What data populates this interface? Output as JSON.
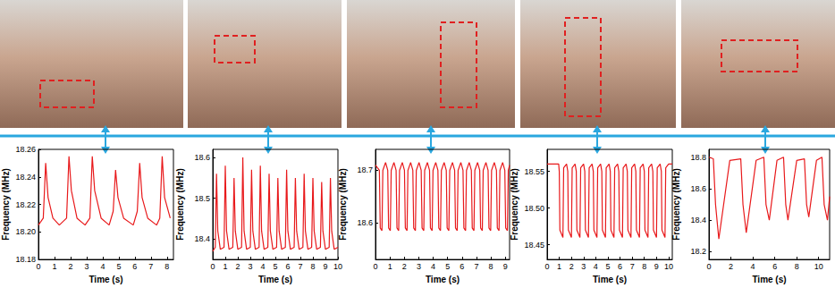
{
  "chart_data": [
    {
      "type": "line",
      "color": "#e8191b",
      "x_label": "Time (s)",
      "y_label": "Frequency (MHz)",
      "grid": false,
      "xlim": [
        0,
        8.4
      ],
      "xticks": [
        0,
        1,
        2,
        3,
        4,
        5,
        6,
        7,
        8
      ],
      "ylim": [
        18.18,
        18.26
      ],
      "yticks": [
        18.18,
        {
          "value": 18.2,
          "label": "18.20"
        },
        18.22,
        18.24,
        18.26
      ],
      "x": [
        0,
        0.3,
        0.45,
        0.6,
        0.9,
        1.3,
        1.75,
        1.9,
        2.05,
        2.4,
        2.9,
        3.2,
        3.35,
        3.5,
        3.9,
        4.4,
        4.65,
        4.8,
        4.95,
        5.3,
        5.9,
        6.15,
        6.3,
        6.45,
        6.8,
        7.35,
        7.55,
        7.7,
        7.85,
        8.2
      ],
      "series": [
        {
          "values": [
            18.205,
            18.21,
            18.25,
            18.225,
            18.21,
            18.205,
            18.21,
            18.255,
            18.23,
            18.21,
            18.205,
            18.21,
            18.255,
            18.23,
            18.21,
            18.205,
            18.215,
            18.245,
            18.225,
            18.21,
            18.205,
            18.215,
            18.25,
            18.225,
            18.21,
            18.205,
            18.21,
            18.255,
            18.225,
            18.21
          ]
        }
      ]
    },
    {
      "type": "line",
      "color": "#e8191b",
      "x_label": "Time (s)",
      "y_label": "Frequency (MHz)",
      "grid": false,
      "xlim": [
        0,
        10
      ],
      "xticks": [
        0,
        1,
        2,
        3,
        4,
        5,
        6,
        7,
        8,
        9,
        10
      ],
      "ylim": [
        18.35,
        18.62
      ],
      "yticks": [
        18.4,
        18.5,
        18.6
      ],
      "x": [
        0,
        0.2,
        0.3,
        0.4,
        0.6,
        0.9,
        1.0,
        1.1,
        1.3,
        1.6,
        1.7,
        1.8,
        2.0,
        2.3,
        2.4,
        2.5,
        2.7,
        3.0,
        3.1,
        3.2,
        3.4,
        3.7,
        3.8,
        3.9,
        4.1,
        4.4,
        4.5,
        4.6,
        4.8,
        5.1,
        5.2,
        5.3,
        5.5,
        5.8,
        5.9,
        6.0,
        6.2,
        6.5,
        6.6,
        6.7,
        6.9,
        7.2,
        7.3,
        7.4,
        7.6,
        7.9,
        8.0,
        8.1,
        8.3,
        8.6,
        8.7,
        8.8,
        9.0,
        9.3,
        9.4,
        9.5,
        9.7,
        10.0
      ],
      "series": [
        {
          "values": [
            18.37,
            18.38,
            18.56,
            18.42,
            18.375,
            18.38,
            18.58,
            18.42,
            18.375,
            18.38,
            18.55,
            18.42,
            18.375,
            18.38,
            18.6,
            18.42,
            18.375,
            18.38,
            18.57,
            18.42,
            18.375,
            18.38,
            18.58,
            18.42,
            18.375,
            18.38,
            18.56,
            18.42,
            18.375,
            18.38,
            18.55,
            18.42,
            18.375,
            18.38,
            18.57,
            18.42,
            18.375,
            18.38,
            18.55,
            18.42,
            18.375,
            18.38,
            18.56,
            18.42,
            18.375,
            18.38,
            18.55,
            18.42,
            18.375,
            18.38,
            18.54,
            18.42,
            18.375,
            18.38,
            18.55,
            18.42,
            18.375,
            18.38
          ]
        }
      ]
    },
    {
      "type": "line",
      "color": "#e8191b",
      "x_label": "Time (s)",
      "y_label": "Frequency (MHz)",
      "grid": false,
      "xlim": [
        0,
        9.3
      ],
      "xticks": [
        0,
        1,
        2,
        3,
        4,
        5,
        6,
        7,
        8,
        9
      ],
      "ylim": [
        18.53,
        18.74
      ],
      "yticks": [
        18.6,
        18.7
      ],
      "x": [
        0,
        0.27,
        0.33,
        0.45,
        0.51,
        0.7,
        0.85,
        0.91,
        1.03,
        1.09,
        1.28,
        1.43,
        1.49,
        1.61,
        1.67,
        1.86,
        2.01,
        2.07,
        2.19,
        2.25,
        2.44,
        2.59,
        2.65,
        2.77,
        2.83,
        3.02,
        3.17,
        3.23,
        3.35,
        3.41,
        3.6,
        3.75,
        3.81,
        3.93,
        3.99,
        4.18,
        4.33,
        4.39,
        4.51,
        4.57,
        4.76,
        4.91,
        4.97,
        5.09,
        5.15,
        5.34,
        5.49,
        5.55,
        5.67,
        5.73,
        5.92,
        6.07,
        6.13,
        6.25,
        6.31,
        6.5,
        6.65,
        6.71,
        6.83,
        6.89,
        7.08,
        7.23,
        7.29,
        7.41,
        7.47,
        7.66,
        7.81,
        7.87,
        7.99,
        8.05,
        8.24,
        8.39,
        8.45,
        8.57,
        8.63,
        8.82,
        8.97,
        9.03,
        9.15,
        9.21,
        9.3
      ],
      "series": [
        {
          "values": [
            18.71,
            18.7,
            18.59,
            18.585,
            18.7,
            18.715,
            18.7,
            18.59,
            18.585,
            18.7,
            18.715,
            18.7,
            18.59,
            18.585,
            18.7,
            18.715,
            18.7,
            18.59,
            18.585,
            18.7,
            18.715,
            18.7,
            18.59,
            18.585,
            18.7,
            18.715,
            18.7,
            18.59,
            18.585,
            18.7,
            18.715,
            18.7,
            18.59,
            18.585,
            18.7,
            18.715,
            18.7,
            18.59,
            18.585,
            18.7,
            18.715,
            18.7,
            18.59,
            18.585,
            18.7,
            18.715,
            18.7,
            18.59,
            18.585,
            18.7,
            18.715,
            18.7,
            18.59,
            18.585,
            18.7,
            18.715,
            18.7,
            18.59,
            18.585,
            18.7,
            18.715,
            18.7,
            18.59,
            18.585,
            18.7,
            18.715,
            18.7,
            18.59,
            18.585,
            18.7,
            18.715,
            18.7,
            18.59,
            18.585,
            18.7,
            18.715,
            18.7,
            18.59,
            18.585,
            18.7,
            18.71
          ]
        }
      ]
    },
    {
      "type": "line",
      "color": "#e8191b",
      "x_label": "Time (s)",
      "y_label": "Frequency (MHz)",
      "grid": false,
      "xlim": [
        0,
        10.3
      ],
      "xticks": [
        0,
        1,
        2,
        3,
        4,
        5,
        6,
        7,
        8,
        9,
        10
      ],
      "ylim": [
        18.43,
        18.58
      ],
      "yticks": [
        18.45,
        {
          "value": 18.5,
          "label": "18.50"
        },
        18.55
      ],
      "x": [
        0,
        0.95,
        1.0,
        1.05,
        1.3,
        1.36,
        1.6,
        1.7,
        1.75,
        2.0,
        2.06,
        2.3,
        2.4,
        2.45,
        2.7,
        2.76,
        3.0,
        3.1,
        3.15,
        3.4,
        3.46,
        3.7,
        3.8,
        3.85,
        4.1,
        4.16,
        4.4,
        4.5,
        4.55,
        4.8,
        4.86,
        5.1,
        5.2,
        5.25,
        5.5,
        5.56,
        5.8,
        5.9,
        5.95,
        6.2,
        6.26,
        6.5,
        6.6,
        6.65,
        6.9,
        6.96,
        7.2,
        7.3,
        7.35,
        7.6,
        7.66,
        7.9,
        8.0,
        8.05,
        8.3,
        8.36,
        8.6,
        8.7,
        8.75,
        9.0,
        9.06,
        9.3,
        9.4,
        9.45,
        9.7,
        9.76,
        10.0,
        10.3
      ],
      "series": [
        {
          "values": [
            18.56,
            18.56,
            18.55,
            18.47,
            18.46,
            18.555,
            18.56,
            18.55,
            18.47,
            18.46,
            18.555,
            18.56,
            18.55,
            18.47,
            18.46,
            18.555,
            18.56,
            18.55,
            18.47,
            18.46,
            18.555,
            18.56,
            18.55,
            18.47,
            18.46,
            18.555,
            18.56,
            18.55,
            18.47,
            18.46,
            18.555,
            18.56,
            18.55,
            18.47,
            18.46,
            18.555,
            18.56,
            18.55,
            18.47,
            18.46,
            18.555,
            18.56,
            18.55,
            18.47,
            18.46,
            18.555,
            18.56,
            18.55,
            18.47,
            18.46,
            18.555,
            18.56,
            18.55,
            18.47,
            18.46,
            18.555,
            18.56,
            18.55,
            18.47,
            18.46,
            18.555,
            18.56,
            18.55,
            18.47,
            18.46,
            18.555,
            18.56,
            18.56
          ]
        }
      ]
    },
    {
      "type": "line",
      "color": "#e8191b",
      "x_label": "Time (s)",
      "y_label": "Frequency (MHz)",
      "grid": false,
      "xlim": [
        0,
        11
      ],
      "xticks": [
        0,
        2,
        4,
        6,
        8,
        10
      ],
      "ylim": [
        18.15,
        18.85
      ],
      "yticks": [
        18.2,
        18.4,
        18.6,
        18.8
      ],
      "x": [
        0,
        0.4,
        0.6,
        0.9,
        1.9,
        2.9,
        3.1,
        3.4,
        4.3,
        5.0,
        5.2,
        5.5,
        6.2,
        6.8,
        7.0,
        7.2,
        8.0,
        8.7,
        8.9,
        9.1,
        9.8,
        10.3,
        10.5,
        10.8,
        11.0
      ],
      "series": [
        {
          "values": [
            18.8,
            18.79,
            18.5,
            18.28,
            18.78,
            18.79,
            18.5,
            18.32,
            18.78,
            18.8,
            18.5,
            18.4,
            18.78,
            18.8,
            18.5,
            18.4,
            18.78,
            18.79,
            18.5,
            18.42,
            18.78,
            18.8,
            18.5,
            18.4,
            18.55
          ]
        }
      ]
    }
  ]
}
